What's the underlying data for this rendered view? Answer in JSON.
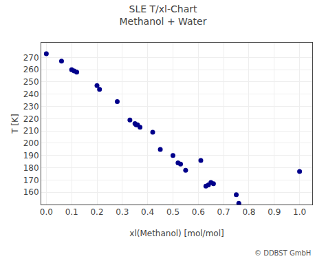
{
  "chart_data": {
    "type": "scatter",
    "title": "SLE T/xl-Chart",
    "subtitle": "Methanol + Water",
    "x_label": "xl(Methanol) [mol/mol]",
    "y_label": "T [K]",
    "x": [
      0.0,
      0.06,
      0.1,
      0.11,
      0.12,
      0.2,
      0.21,
      0.28,
      0.33,
      0.35,
      0.355,
      0.36,
      0.37,
      0.42,
      0.45,
      0.5,
      0.52,
      0.53,
      0.55,
      0.61,
      0.63,
      0.64,
      0.65,
      0.66,
      0.75,
      0.76,
      1.0
    ],
    "values": [
      273,
      267,
      260,
      259,
      258,
      247,
      244,
      234,
      219,
      216,
      215,
      215,
      213,
      209,
      195,
      190,
      184,
      183,
      178,
      186,
      165,
      166,
      168,
      167,
      158,
      151,
      177
    ],
    "color": "#00008B",
    "marker": "circle",
    "xlim": [
      -0.02,
      1.05
    ],
    "ylim": [
      150,
      282
    ],
    "xticks": [
      {
        "value": 0,
        "label": "0.0"
      },
      0.1,
      0.2,
      0.3,
      0.4,
      0.5,
      0.6,
      0.7,
      0.8,
      0.9,
      {
        "value": 1,
        "label": "1.0"
      }
    ],
    "yticks": [
      160,
      170,
      180,
      190,
      200,
      210,
      220,
      230,
      240,
      250,
      260,
      270
    ],
    "grid": true,
    "annotations": [
      "© DDBST GmbH"
    ]
  }
}
